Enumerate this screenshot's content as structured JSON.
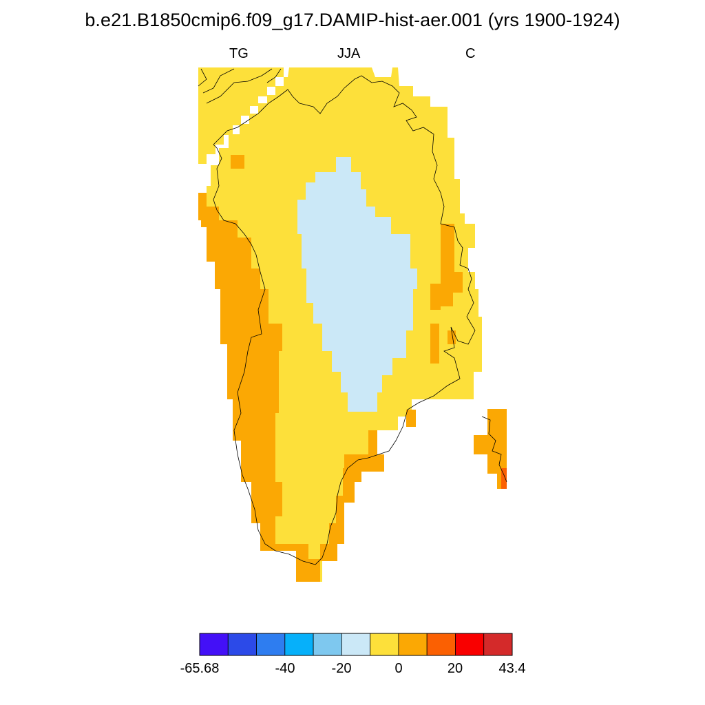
{
  "header": {
    "title": "b.e21.B1850cmip6.f09_g17.DAMIP-hist-aer.001 (yrs 1900-1924)",
    "left_label": "TG",
    "center_label": "JJA",
    "right_label": "C"
  },
  "colors": {
    "land_yellow": "#fde03a",
    "land_orange": "#fba804",
    "land_lightblue": "#cbe8f7",
    "land_red_orange": "#fb6002",
    "coastline": "#000000"
  },
  "colorbar": {
    "colors": [
      "#4310f7",
      "#2c4ae8",
      "#2e7df0",
      "#06b0fa",
      "#7ec8ef",
      "#cbe8f7",
      "#fde03a",
      "#fba804",
      "#fb6002",
      "#f90000",
      "#d42a2a"
    ],
    "labels": [
      "-65.68",
      "-40",
      "-20",
      "0",
      "20",
      "43.4"
    ]
  }
}
